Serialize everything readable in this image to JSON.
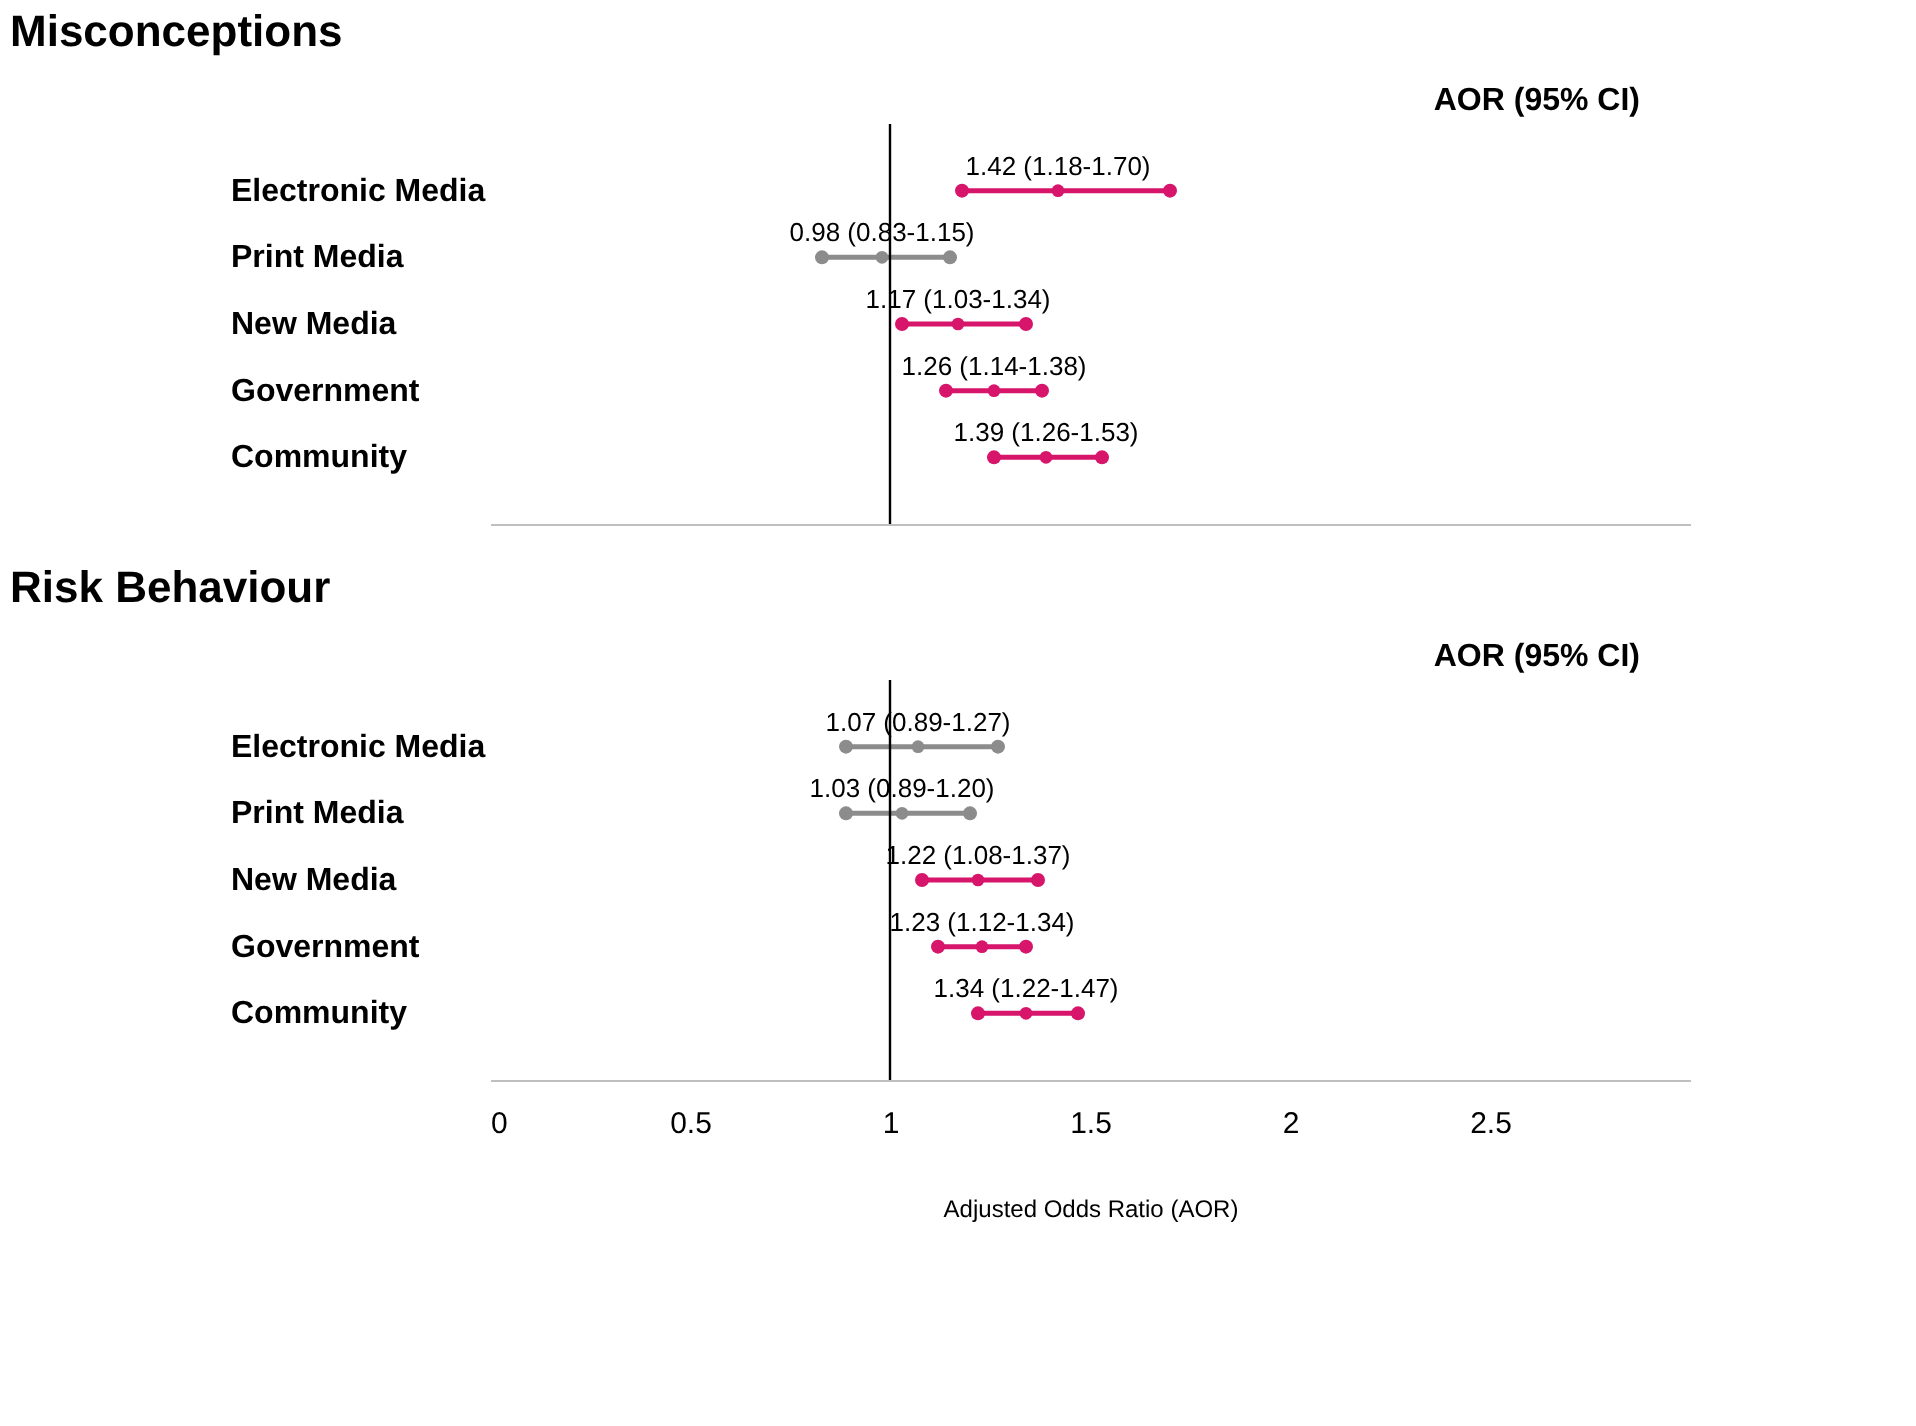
{
  "chart_data": [
    {
      "type": "scatter",
      "orientation": "horizontal",
      "title": "Misconceptions",
      "annotations": [
        "AOR (95% CI)"
      ],
      "categories": [
        "Electronic Media",
        "Print Media",
        "New Media",
        "Government",
        "Community"
      ],
      "values": [
        1.42,
        0.98,
        1.17,
        1.26,
        1.39
      ],
      "errors": [
        [
          1.18,
          1.7
        ],
        [
          0.83,
          1.15
        ],
        [
          1.03,
          1.34
        ],
        [
          1.14,
          1.38
        ],
        [
          1.26,
          1.53
        ]
      ],
      "colors": [
        "#d6156b",
        "#8c8c8c",
        "#d6156b",
        "#d6156b",
        "#d6156b"
      ],
      "value_labels": [
        "1.42 (1.18-1.70)",
        "0.98 (0.83-1.15)",
        "1.17 (1.03-1.34)",
        "1.26 (1.14-1.38)",
        "1.39 (1.26-1.53)"
      ],
      "xlim": [
        0,
        3
      ],
      "xticks": [
        0,
        0.5,
        1,
        1.5,
        2,
        2.5
      ],
      "tick_labels": "y",
      "marker": "circle",
      "ref_lines": [
        {
          "axis": "x",
          "value": 1,
          "color": "#000000"
        }
      ]
    },
    {
      "type": "scatter",
      "orientation": "horizontal",
      "title": "Risk Behaviour",
      "annotations": [
        "AOR (95% CI)"
      ],
      "xlabel": "Adjusted Odds Ratio (AOR)",
      "categories": [
        "Electronic Media",
        "Print Media",
        "New Media",
        "Government",
        "Community"
      ],
      "values": [
        1.07,
        1.03,
        1.22,
        1.23,
        1.34
      ],
      "errors": [
        [
          0.89,
          1.27
        ],
        [
          0.89,
          1.2
        ],
        [
          1.08,
          1.37
        ],
        [
          1.12,
          1.34
        ],
        [
          1.22,
          1.47
        ]
      ],
      "colors": [
        "#8c8c8c",
        "#8c8c8c",
        "#d6156b",
        "#d6156b",
        "#d6156b"
      ],
      "value_labels": [
        "1.07 (0.89-1.27)",
        "1.03 (0.89-1.20)",
        "1.22 (1.08-1.37)",
        "1.23 (1.12-1.34)",
        "1.34 (1.22-1.47)"
      ],
      "xlim": [
        0,
        3
      ],
      "xticks": [
        0,
        0.5,
        1,
        1.5,
        2,
        2.5
      ],
      "marker": "circle",
      "ref_lines": [
        {
          "axis": "x",
          "value": 1,
          "color": "#000000"
        }
      ]
    }
  ]
}
